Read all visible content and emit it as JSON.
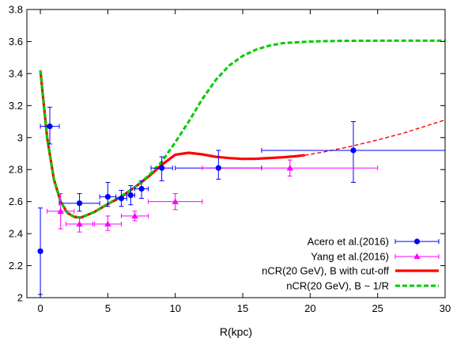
{
  "chart_data": {
    "type": "scatter",
    "xlabel": "R(kpc)",
    "ylabel": "",
    "xlim": [
      -1,
      30
    ],
    "ylim": [
      2,
      3.8
    ],
    "xticks": [
      0,
      5,
      10,
      15,
      20,
      25,
      30
    ],
    "yticks": [
      2,
      2.2,
      2.4,
      2.6,
      2.8,
      3,
      3.2,
      3.4,
      3.6,
      3.8
    ],
    "xtick_labels": [
      "0",
      "5",
      "10",
      "15",
      "20",
      "25",
      "30"
    ],
    "ytick_labels": [
      "2",
      "2.2",
      "2.4",
      "2.6",
      "2.8",
      "3",
      "3.2",
      "3.4",
      "3.6",
      "3.8"
    ],
    "grid": false,
    "legend_position": "bottom-right",
    "series": [
      {
        "name": "Acero et al.(2016)",
        "kind": "points",
        "marker": "circle",
        "color": "#0000ff",
        "points": [
          {
            "x": 0.0,
            "y": 2.29,
            "xerr": [
              0.0,
              0.0
            ],
            "yerr": [
              0.27,
              0.27
            ]
          },
          {
            "x": 0.7,
            "y": 3.07,
            "xerr": [
              0.7,
              0.7
            ],
            "yerr": [
              0.11,
              0.12
            ]
          },
          {
            "x": 2.9,
            "y": 2.59,
            "xerr": [
              1.5,
              1.5
            ],
            "yerr": [
              0.05,
              0.06
            ]
          },
          {
            "x": 5.0,
            "y": 2.63,
            "xerr": [
              0.6,
              0.6
            ],
            "yerr": [
              0.06,
              0.09
            ]
          },
          {
            "x": 6.0,
            "y": 2.62,
            "xerr": [
              0.4,
              0.4
            ],
            "yerr": [
              0.05,
              0.05
            ]
          },
          {
            "x": 6.7,
            "y": 2.64,
            "xerr": [
              0.3,
              0.3
            ],
            "yerr": [
              0.06,
              0.06
            ]
          },
          {
            "x": 7.5,
            "y": 2.68,
            "xerr": [
              0.5,
              0.5
            ],
            "yerr": [
              0.06,
              0.05
            ]
          },
          {
            "x": 9.0,
            "y": 2.81,
            "xerr": [
              0.8,
              0.8
            ],
            "yerr": [
              0.08,
              0.07
            ]
          },
          {
            "x": 13.2,
            "y": 2.81,
            "xerr": [
              3.2,
              3.2
            ],
            "yerr": [
              0.07,
              0.11
            ]
          },
          {
            "x": 23.2,
            "y": 2.92,
            "xerr": [
              6.8,
              6.8
            ],
            "yerr": [
              0.2,
              0.18
            ]
          }
        ]
      },
      {
        "name": "Yang et al.(2016)",
        "kind": "points",
        "marker": "triangle",
        "color": "#ff00ff",
        "points": [
          {
            "x": 1.5,
            "y": 2.54,
            "xerr": [
              1.0,
              1.0
            ],
            "yerr": [
              0.11,
              0.11
            ]
          },
          {
            "x": 2.9,
            "y": 2.46,
            "xerr": [
              1.0,
              1.0
            ],
            "yerr": [
              0.05,
              0.04
            ]
          },
          {
            "x": 5.0,
            "y": 2.46,
            "xerr": [
              1.0,
              1.0
            ],
            "yerr": [
              0.04,
              0.05
            ]
          },
          {
            "x": 7.0,
            "y": 2.51,
            "xerr": [
              1.0,
              1.0
            ],
            "yerr": [
              0.03,
              0.03
            ]
          },
          {
            "x": 10.0,
            "y": 2.6,
            "xerr": [
              2.0,
              2.0
            ],
            "yerr": [
              0.05,
              0.05
            ]
          },
          {
            "x": 18.5,
            "y": 2.81,
            "xerr": [
              6.5,
              6.5
            ],
            "yerr": [
              0.05,
              0.05
            ]
          }
        ]
      },
      {
        "name": "nCR(20 GeV), B with cut-off",
        "kind": "line",
        "color": "#ff0000",
        "style": "solid",
        "points": [
          {
            "x": 0.0,
            "y": 3.42
          },
          {
            "x": 0.5,
            "y": 3.0
          },
          {
            "x": 1.0,
            "y": 2.74
          },
          {
            "x": 1.5,
            "y": 2.6
          },
          {
            "x": 2.0,
            "y": 2.53
          },
          {
            "x": 2.5,
            "y": 2.505
          },
          {
            "x": 3.0,
            "y": 2.5
          },
          {
            "x": 4.0,
            "y": 2.535
          },
          {
            "x": 5.0,
            "y": 2.585
          },
          {
            "x": 6.0,
            "y": 2.63
          },
          {
            "x": 7.0,
            "y": 2.69
          },
          {
            "x": 8.0,
            "y": 2.755
          },
          {
            "x": 9.0,
            "y": 2.83
          },
          {
            "x": 10.0,
            "y": 2.893
          },
          {
            "x": 11.0,
            "y": 2.905
          },
          {
            "x": 12.0,
            "y": 2.895
          },
          {
            "x": 13.0,
            "y": 2.88
          },
          {
            "x": 14.0,
            "y": 2.872
          },
          {
            "x": 15.0,
            "y": 2.867
          },
          {
            "x": 16.0,
            "y": 2.868
          },
          {
            "x": 17.0,
            "y": 2.872
          },
          {
            "x": 18.0,
            "y": 2.877
          },
          {
            "x": 19.0,
            "y": 2.884
          },
          {
            "x": 19.6,
            "y": 2.89
          }
        ]
      },
      {
        "name": "",
        "kind": "line",
        "color": "#ff0000",
        "style": "dashed-thin",
        "points": [
          {
            "x": 19.6,
            "y": 2.89
          },
          {
            "x": 21.0,
            "y": 2.91
          },
          {
            "x": 23.0,
            "y": 2.945
          },
          {
            "x": 25.0,
            "y": 2.985
          },
          {
            "x": 27.0,
            "y": 3.03
          },
          {
            "x": 28.5,
            "y": 3.07
          },
          {
            "x": 30.0,
            "y": 3.11
          }
        ]
      },
      {
        "name": "nCR(20 GeV), B ~ 1/R",
        "kind": "line",
        "color": "#00cc00",
        "style": "dashed",
        "points": [
          {
            "x": 0.0,
            "y": 3.42
          },
          {
            "x": 0.5,
            "y": 3.0
          },
          {
            "x": 1.0,
            "y": 2.74
          },
          {
            "x": 1.5,
            "y": 2.6
          },
          {
            "x": 2.0,
            "y": 2.53
          },
          {
            "x": 2.5,
            "y": 2.505
          },
          {
            "x": 3.0,
            "y": 2.5
          },
          {
            "x": 4.0,
            "y": 2.535
          },
          {
            "x": 5.0,
            "y": 2.585
          },
          {
            "x": 6.0,
            "y": 2.635
          },
          {
            "x": 7.0,
            "y": 2.69
          },
          {
            "x": 8.0,
            "y": 2.76
          },
          {
            "x": 9.0,
            "y": 2.85
          },
          {
            "x": 10.0,
            "y": 2.97
          },
          {
            "x": 11.0,
            "y": 3.1
          },
          {
            "x": 12.0,
            "y": 3.24
          },
          {
            "x": 13.0,
            "y": 3.36
          },
          {
            "x": 14.0,
            "y": 3.45
          },
          {
            "x": 15.0,
            "y": 3.51
          },
          {
            "x": 16.0,
            "y": 3.55
          },
          {
            "x": 17.0,
            "y": 3.575
          },
          {
            "x": 18.0,
            "y": 3.59
          },
          {
            "x": 20.0,
            "y": 3.6
          },
          {
            "x": 22.0,
            "y": 3.604
          },
          {
            "x": 25.0,
            "y": 3.605
          },
          {
            "x": 30.0,
            "y": 3.605
          }
        ]
      }
    ]
  }
}
